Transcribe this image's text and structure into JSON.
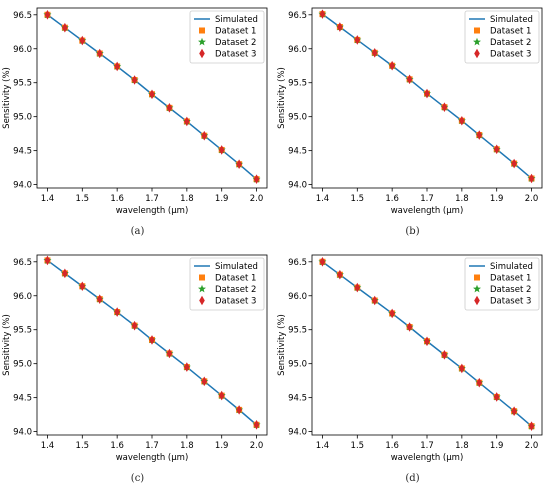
{
  "colors": {
    "simulated": "#1f77b4",
    "dataset1": "#ff7f0e",
    "dataset2": "#2ca02c",
    "dataset3": "#d62728"
  },
  "chart_data": [
    {
      "type": "line",
      "caption": "(a)",
      "xlabel": "wavelength (μm)",
      "ylabel": "Sensitivity (%)",
      "xlim": [
        1.37,
        2.03
      ],
      "ylim": [
        93.95,
        96.6
      ],
      "xticks": [
        "1.4",
        "1.5",
        "1.6",
        "1.7",
        "1.8",
        "1.9",
        "2.0"
      ],
      "yticks": [
        "94.0",
        "94.5",
        "95.0",
        "95.5",
        "96.0",
        "96.5"
      ],
      "legend_position": "top-right",
      "x": [
        1.4,
        1.45,
        1.5,
        1.55,
        1.6,
        1.65,
        1.7,
        1.75,
        1.8,
        1.85,
        1.9,
        1.95,
        2.0
      ],
      "series": [
        {
          "name": "Simulated",
          "marker": "line",
          "values": [
            96.5,
            96.31,
            96.12,
            95.93,
            95.74,
            95.54,
            95.33,
            95.13,
            94.93,
            94.72,
            94.51,
            94.3,
            94.08
          ]
        },
        {
          "name": "Dataset 1",
          "marker": "square",
          "values": [
            96.5,
            96.31,
            96.12,
            95.93,
            95.74,
            95.54,
            95.33,
            95.13,
            94.93,
            94.72,
            94.51,
            94.3,
            94.08
          ]
        },
        {
          "name": "Dataset 2",
          "marker": "star",
          "values": [
            96.5,
            96.31,
            96.12,
            95.93,
            95.74,
            95.54,
            95.33,
            95.13,
            94.93,
            94.72,
            94.51,
            94.3,
            94.08
          ]
        },
        {
          "name": "Dataset 3",
          "marker": "thin-diamond",
          "values": [
            96.5,
            96.31,
            96.12,
            95.93,
            95.74,
            95.54,
            95.33,
            95.13,
            94.93,
            94.72,
            94.51,
            94.3,
            94.08
          ]
        }
      ]
    },
    {
      "type": "line",
      "caption": "(b)",
      "xlabel": "wavelength (μm)",
      "ylabel": "Sensitivity (%)",
      "xlim": [
        1.37,
        2.03
      ],
      "ylim": [
        93.95,
        96.6
      ],
      "xticks": [
        "1.4",
        "1.5",
        "1.6",
        "1.7",
        "1.8",
        "1.9",
        "2.0"
      ],
      "yticks": [
        "94.0",
        "94.5",
        "95.0",
        "95.5",
        "96.0",
        "96.5"
      ],
      "legend_position": "top-right",
      "x": [
        1.4,
        1.45,
        1.5,
        1.55,
        1.6,
        1.65,
        1.7,
        1.75,
        1.8,
        1.85,
        1.9,
        1.95,
        2.0
      ],
      "series": [
        {
          "name": "Simulated",
          "marker": "line",
          "values": [
            96.51,
            96.32,
            96.13,
            95.94,
            95.75,
            95.55,
            95.34,
            95.14,
            94.94,
            94.73,
            94.52,
            94.31,
            94.09
          ]
        },
        {
          "name": "Dataset 1",
          "marker": "square",
          "values": [
            96.51,
            96.32,
            96.13,
            95.94,
            95.75,
            95.55,
            95.34,
            95.14,
            94.94,
            94.73,
            94.52,
            94.31,
            94.09
          ]
        },
        {
          "name": "Dataset 2",
          "marker": "star",
          "values": [
            96.51,
            96.32,
            96.13,
            95.94,
            95.75,
            95.55,
            95.34,
            95.14,
            94.94,
            94.73,
            94.52,
            94.31,
            94.09
          ]
        },
        {
          "name": "Dataset 3",
          "marker": "thin-diamond",
          "values": [
            96.51,
            96.32,
            96.13,
            95.94,
            95.75,
            95.55,
            95.34,
            95.14,
            94.94,
            94.73,
            94.52,
            94.31,
            94.09
          ]
        }
      ]
    },
    {
      "type": "line",
      "caption": "(c)",
      "xlabel": "wavelength (μm)",
      "ylabel": "Sensitivity (%)",
      "xlim": [
        1.37,
        2.03
      ],
      "ylim": [
        93.95,
        96.6
      ],
      "xticks": [
        "1.4",
        "1.5",
        "1.6",
        "1.7",
        "1.8",
        "1.9",
        "2.0"
      ],
      "yticks": [
        "94.0",
        "94.5",
        "95.0",
        "95.5",
        "96.0",
        "96.5"
      ],
      "legend_position": "top-right",
      "x": [
        1.4,
        1.45,
        1.5,
        1.55,
        1.6,
        1.65,
        1.7,
        1.75,
        1.8,
        1.85,
        1.9,
        1.95,
        2.0
      ],
      "series": [
        {
          "name": "Simulated",
          "marker": "line",
          "values": [
            96.52,
            96.33,
            96.14,
            95.95,
            95.76,
            95.56,
            95.35,
            95.15,
            94.95,
            94.74,
            94.53,
            94.32,
            94.1
          ]
        },
        {
          "name": "Dataset 1",
          "marker": "square",
          "values": [
            96.52,
            96.33,
            96.14,
            95.95,
            95.76,
            95.56,
            95.35,
            95.15,
            94.95,
            94.74,
            94.53,
            94.32,
            94.1
          ]
        },
        {
          "name": "Dataset 2",
          "marker": "star",
          "values": [
            96.52,
            96.33,
            96.14,
            95.95,
            95.76,
            95.56,
            95.35,
            95.15,
            94.95,
            94.74,
            94.53,
            94.32,
            94.1
          ]
        },
        {
          "name": "Dataset 3",
          "marker": "thin-diamond",
          "values": [
            96.52,
            96.33,
            96.14,
            95.95,
            95.76,
            95.56,
            95.35,
            95.15,
            94.95,
            94.74,
            94.53,
            94.32,
            94.1
          ]
        }
      ]
    },
    {
      "type": "line",
      "caption": "(d)",
      "xlabel": "wavelength (μm)",
      "ylabel": "Sensitivity (%)",
      "xlim": [
        1.37,
        2.03
      ],
      "ylim": [
        93.95,
        96.6
      ],
      "xticks": [
        "1.4",
        "1.5",
        "1.6",
        "1.7",
        "1.8",
        "1.9",
        "2.0"
      ],
      "yticks": [
        "94.0",
        "94.5",
        "95.0",
        "95.5",
        "96.0",
        "96.5"
      ],
      "legend_position": "top-right",
      "x": [
        1.4,
        1.45,
        1.5,
        1.55,
        1.6,
        1.65,
        1.7,
        1.75,
        1.8,
        1.85,
        1.9,
        1.95,
        2.0
      ],
      "series": [
        {
          "name": "Simulated",
          "marker": "line",
          "values": [
            96.5,
            96.31,
            96.12,
            95.93,
            95.74,
            95.54,
            95.33,
            95.13,
            94.93,
            94.72,
            94.51,
            94.3,
            94.08
          ]
        },
        {
          "name": "Dataset 1",
          "marker": "square",
          "values": [
            96.5,
            96.31,
            96.12,
            95.93,
            95.74,
            95.54,
            95.33,
            95.13,
            94.93,
            94.72,
            94.51,
            94.3,
            94.08
          ]
        },
        {
          "name": "Dataset 2",
          "marker": "star",
          "values": [
            96.5,
            96.31,
            96.12,
            95.93,
            95.74,
            95.54,
            95.33,
            95.13,
            94.93,
            94.72,
            94.51,
            94.3,
            94.08
          ]
        },
        {
          "name": "Dataset 3",
          "marker": "thin-diamond",
          "values": [
            96.5,
            96.31,
            96.12,
            95.93,
            95.74,
            95.54,
            95.33,
            95.13,
            94.93,
            94.72,
            94.51,
            94.3,
            94.08
          ]
        }
      ]
    }
  ]
}
